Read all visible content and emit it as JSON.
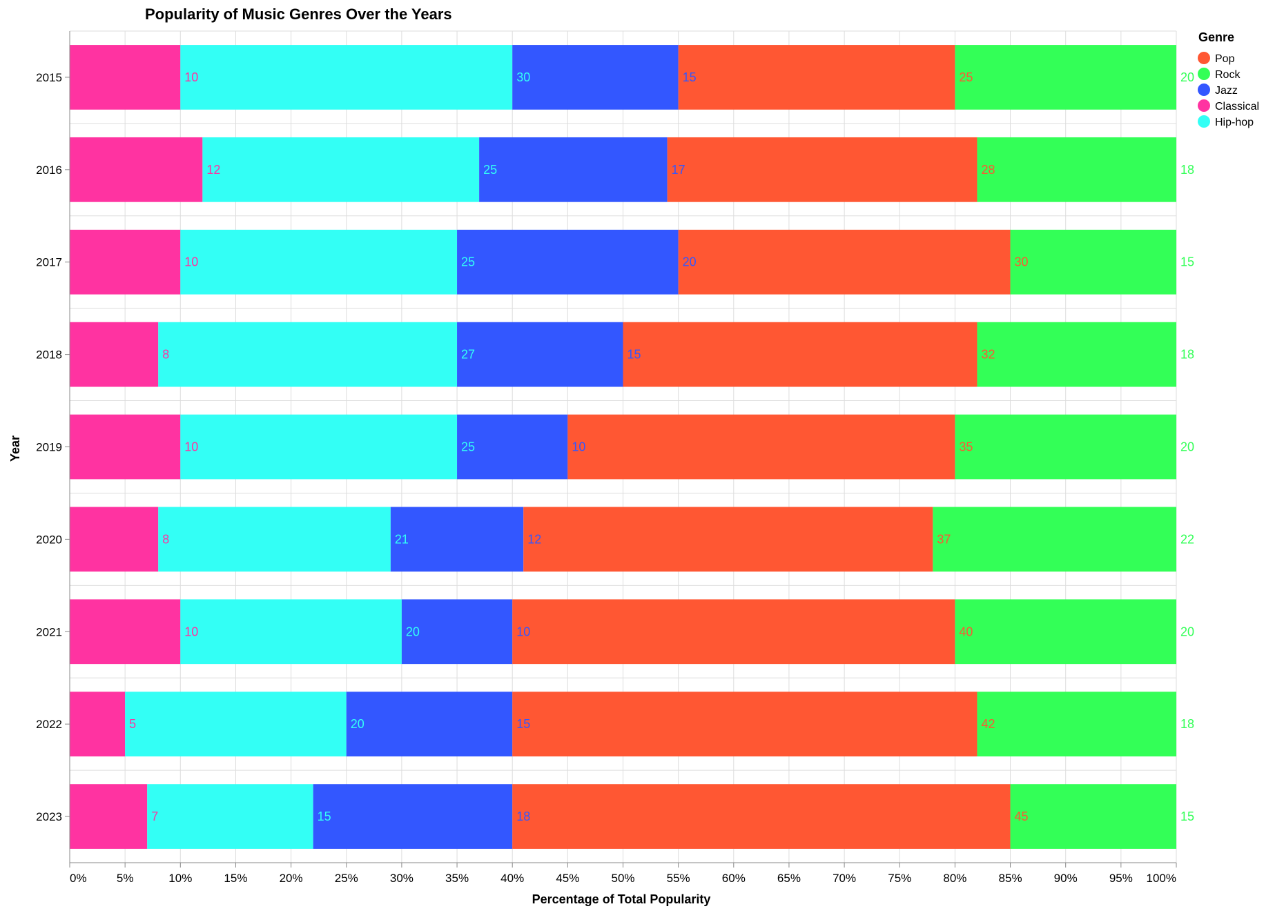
{
  "chart_data": {
    "type": "bar",
    "orientation": "horizontal",
    "stacked": true,
    "normalized": true,
    "title": "Popularity of Music Genres Over the Years",
    "xlabel": "Percentage of Total Popularity",
    "ylabel": "Year",
    "xlim": [
      0,
      100
    ],
    "x_ticks": [
      "0%",
      "5%",
      "10%",
      "15%",
      "20%",
      "25%",
      "30%",
      "35%",
      "40%",
      "45%",
      "50%",
      "55%",
      "60%",
      "65%",
      "70%",
      "75%",
      "80%",
      "85%",
      "90%",
      "95%",
      "100%"
    ],
    "categories": [
      "2015",
      "2016",
      "2017",
      "2018",
      "2019",
      "2020",
      "2021",
      "2022",
      "2023"
    ],
    "stack_order": [
      "Classical",
      "Hip-hop",
      "Jazz",
      "Pop",
      "Rock"
    ],
    "series": [
      {
        "name": "Pop",
        "color": "#ff5733",
        "values": [
          25,
          28,
          30,
          32,
          35,
          37,
          40,
          42,
          45
        ]
      },
      {
        "name": "Rock",
        "color": "#33ff57",
        "values": [
          20,
          18,
          15,
          18,
          20,
          22,
          20,
          18,
          15
        ]
      },
      {
        "name": "Jazz",
        "color": "#3357ff",
        "values": [
          15,
          17,
          20,
          15,
          10,
          12,
          10,
          15,
          18
        ]
      },
      {
        "name": "Classical",
        "color": "#ff33a1",
        "values": [
          10,
          12,
          10,
          8,
          10,
          8,
          10,
          5,
          7
        ]
      },
      {
        "name": "Hip-hop",
        "color": "#33fff5",
        "values": [
          30,
          25,
          25,
          27,
          25,
          21,
          20,
          20,
          15
        ]
      }
    ],
    "legend": {
      "title": "Genre",
      "position": "top-right"
    },
    "grid": true
  }
}
